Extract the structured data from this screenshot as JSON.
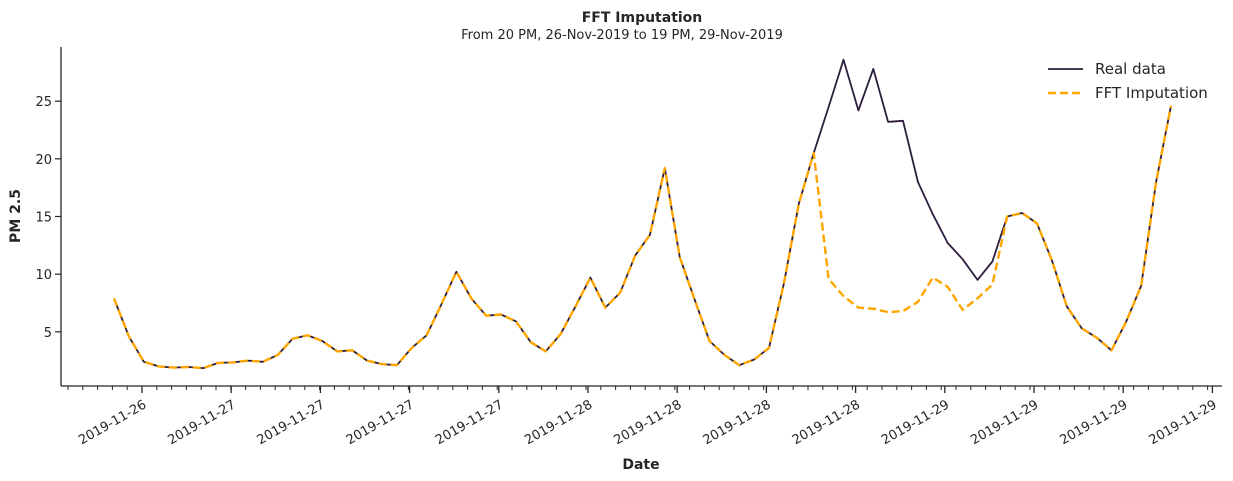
{
  "chart_data": {
    "type": "line",
    "title": "FFT Imputation",
    "subtitle": "From 20 PM, 26-Nov-2019 to 19 PM, 29-Nov-2019",
    "xlabel": "Date",
    "ylabel": "PM 2.5",
    "ylim": [
      0.3,
      29.7
    ],
    "yticks": [
      5,
      10,
      15,
      20,
      25
    ],
    "xtick_labels": [
      "2019-11-26",
      "2019-11-27",
      "2019-11-27",
      "2019-11-27",
      "2019-11-27",
      "2019-11-28",
      "2019-11-28",
      "2019-11-28",
      "2019-11-28",
      "2019-11-29",
      "2019-11-29",
      "2019-11-29",
      "2019-11-29"
    ],
    "grid": false,
    "legend_position": "top-right",
    "series": [
      {
        "name": "Real data",
        "color": "#2d1e3e",
        "style": "solid",
        "values": [
          7.9,
          4.6,
          2.4,
          2.0,
          1.9,
          1.95,
          1.85,
          2.3,
          2.35,
          2.5,
          2.4,
          3.0,
          4.4,
          4.7,
          4.2,
          3.3,
          3.4,
          2.5,
          2.2,
          2.1,
          3.6,
          4.7,
          7.4,
          10.2,
          7.9,
          6.4,
          6.5,
          5.9,
          4.1,
          3.3,
          4.8,
          7.2,
          9.7,
          7.1,
          8.4,
          11.6,
          13.4,
          19.2,
          11.5,
          7.8,
          4.2,
          3.0,
          2.1,
          2.6,
          3.6,
          9.2,
          16.1,
          20.5,
          24.5,
          28.6,
          24.2,
          27.8,
          23.2,
          23.3,
          18.0,
          15.2,
          12.7,
          11.3,
          9.5,
          11.1,
          15.0,
          15.3,
          14.4,
          11.2,
          7.2,
          5.3,
          4.5,
          3.4,
          5.9,
          9.0,
          18.0,
          24.6
        ]
      },
      {
        "name": "FFT Imputation",
        "color": "#ffa500",
        "style": "dashed",
        "values": [
          7.9,
          4.6,
          2.4,
          2.0,
          1.9,
          1.95,
          1.85,
          2.3,
          2.35,
          2.5,
          2.4,
          3.0,
          4.4,
          4.7,
          4.2,
          3.3,
          3.4,
          2.5,
          2.2,
          2.1,
          3.6,
          4.7,
          7.4,
          10.2,
          7.9,
          6.4,
          6.5,
          5.9,
          4.1,
          3.3,
          4.8,
          7.2,
          9.7,
          7.1,
          8.4,
          11.6,
          13.4,
          19.2,
          11.5,
          7.8,
          4.2,
          3.0,
          2.1,
          2.6,
          3.6,
          9.2,
          16.1,
          20.5,
          9.6,
          8.1,
          7.1,
          7.0,
          6.7,
          6.8,
          7.6,
          9.7,
          8.9,
          6.9,
          7.9,
          9.1,
          15.0,
          15.3,
          14.4,
          11.2,
          7.2,
          5.3,
          4.5,
          3.4,
          5.9,
          9.0,
          18.0,
          24.6
        ]
      }
    ]
  }
}
